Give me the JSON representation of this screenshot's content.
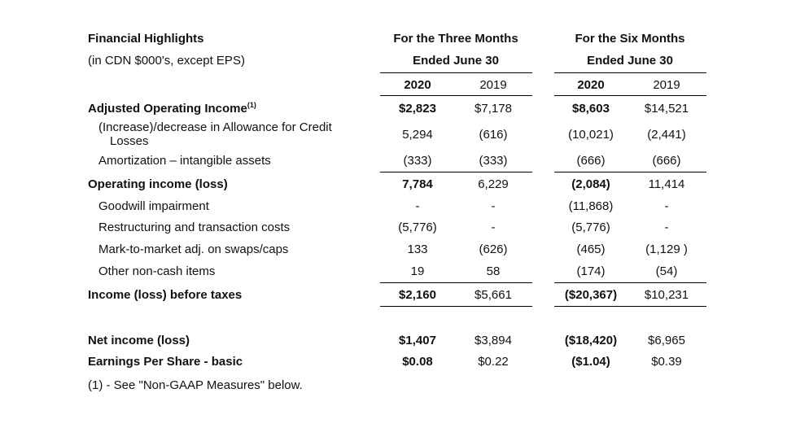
{
  "header": {
    "title": "Financial Highlights",
    "subtitle": "(in CDN $000's, except EPS)",
    "three_months_line1": "For the Three Months",
    "three_months_line2": "Ended June 30",
    "six_months_line1": "For the Six Months",
    "six_months_line2": "Ended June 30",
    "years": [
      "2020",
      "2019",
      "2020",
      "2019"
    ]
  },
  "rows": [
    {
      "label": "Adjusted Operating Income",
      "sup": "(1)",
      "values": [
        "$2,823",
        "$7,178",
        "$8,603",
        "$14,521"
      ]
    },
    {
      "label": "(Increase)/decrease in Allowance for Credit",
      "label2": "Losses",
      "values": [
        "5,294",
        "(616)",
        "(10,021)",
        "(2,441)"
      ]
    },
    {
      "label": "Amortization – intangible assets",
      "values": [
        "(333)",
        "(333)",
        "(666)",
        "(666)"
      ]
    },
    {
      "label": "Operating income (loss)",
      "values": [
        "7,784",
        "6,229",
        "(2,084)",
        "11,414"
      ]
    },
    {
      "label": "Goodwill impairment",
      "values": [
        "-",
        "-",
        "(11,868)",
        "-"
      ]
    },
    {
      "label": "Restructuring and transaction costs",
      "values": [
        "(5,776)",
        "-",
        "(5,776)",
        "-"
      ]
    },
    {
      "label": "Mark-to-market adj. on swaps/caps",
      "values": [
        "133",
        "(626)",
        "(465)",
        "(1,129 )"
      ]
    },
    {
      "label": "Other non-cash items",
      "values": [
        "19",
        "58",
        "(174)",
        "(54)"
      ]
    },
    {
      "label": "Income (loss) before taxes",
      "values": [
        "$2,160",
        "$5,661",
        "($20,367)",
        "$10,231"
      ]
    },
    {
      "label": "Net income (loss)",
      "values": [
        "$1,407",
        "$3,894",
        "($18,420)",
        "$6,965"
      ]
    },
    {
      "label": "Earnings Per Share - basic",
      "values": [
        "$0.08",
        "$0.22",
        "($1.04)",
        "$0.39"
      ]
    }
  ],
  "footnote": "(1)  - See \"Non-GAAP Measures\" below."
}
